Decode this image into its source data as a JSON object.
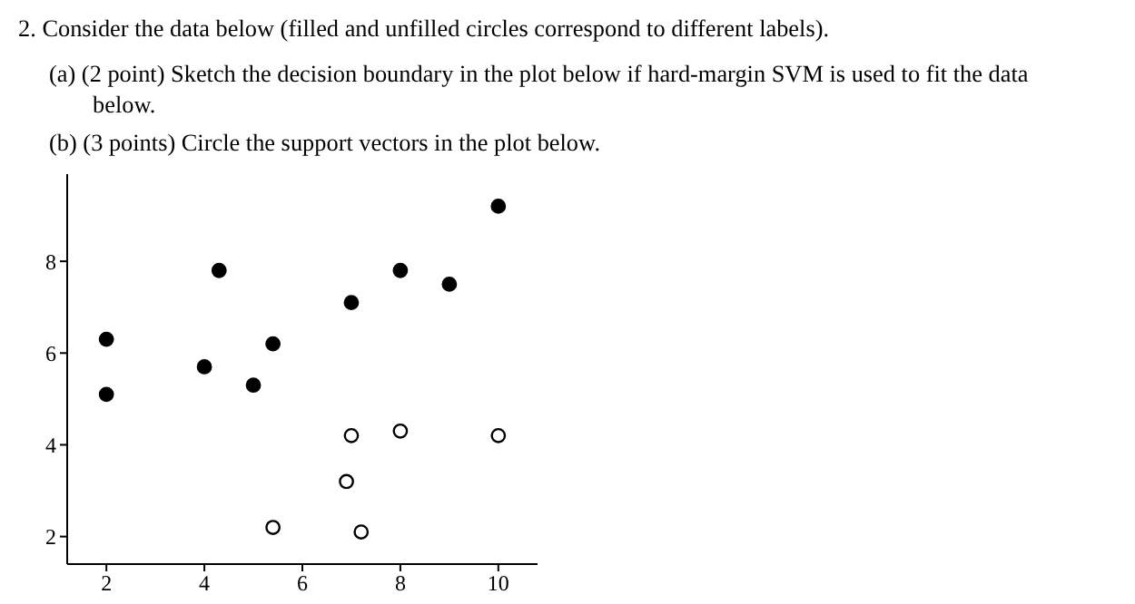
{
  "chart_data": {
    "type": "scatter",
    "title": "2. Consider the data below (filled and unfilled circles correspond to different labels).",
    "annotations": [
      "(a) (2 point) Sketch the decision boundary in the plot below if hard-margin SVM is used to fit the data below.",
      "(b) (3 points) Circle the support vectors in the plot below."
    ],
    "series": [
      {
        "color": "#000000",
        "x": [
          2,
          2,
          4.3,
          4,
          5,
          5.4,
          7,
          8,
          9,
          10
        ],
        "values": [
          6.3,
          5.1,
          7.8,
          5.7,
          5.3,
          6.2,
          7.1,
          7.8,
          7.5,
          9.2
        ]
      },
      {
        "color": "#ffffff",
        "x": [
          7,
          8,
          10,
          6.9,
          5.4,
          7.2
        ],
        "values": [
          4.2,
          4.3,
          4.2,
          3.2,
          2.2,
          2.1
        ]
      }
    ],
    "xlim": [
      1.2,
      10.8
    ],
    "ylim": [
      1.4,
      9.9
    ],
    "xticks": [
      2,
      4,
      6,
      8,
      10
    ],
    "yticks": [
      2,
      4,
      6,
      8
    ],
    "grid": false,
    "legend": false,
    "marker": "circle"
  }
}
